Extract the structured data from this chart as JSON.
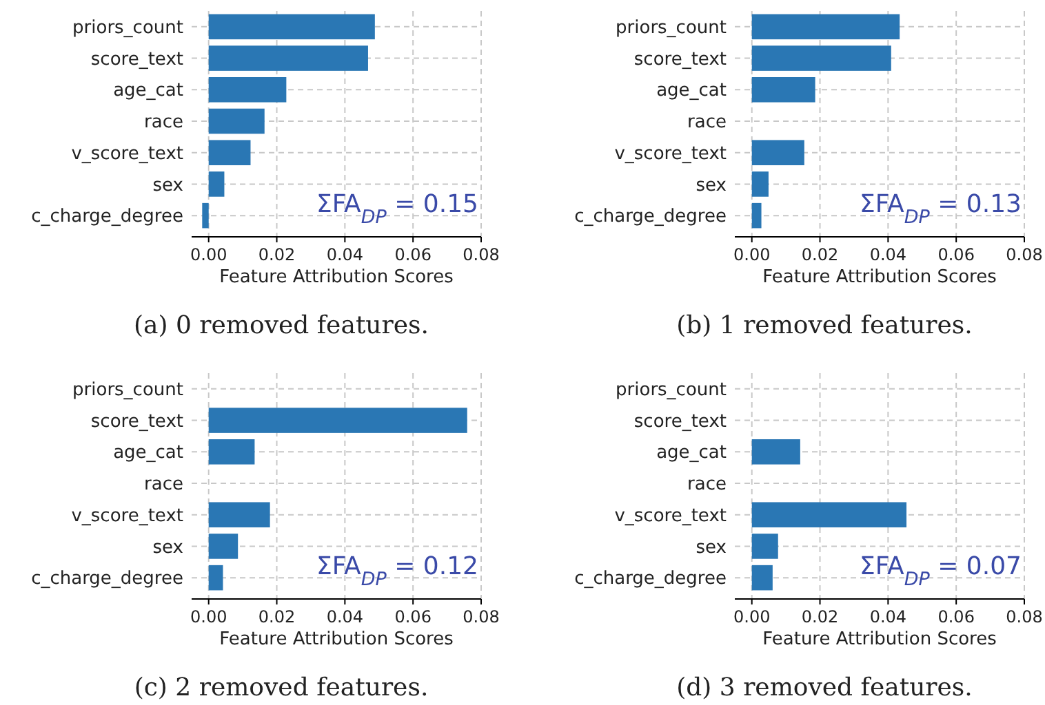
{
  "chart_data": [
    {
      "type": "bar",
      "orientation": "horizontal",
      "title": "(a) 0 removed features.",
      "xlabel": "Feature Attribution Scores",
      "categories": [
        "priors_count",
        "score_text",
        "age_cat",
        "race",
        "v_score_text",
        "sex",
        "c_charge_degree"
      ],
      "values": [
        0.0488,
        0.0468,
        0.0228,
        0.0164,
        0.0123,
        0.0046,
        -0.0019
      ],
      "color": "#2a77b4",
      "xlim": [
        -0.005,
        0.08
      ],
      "xticks": [
        {
          "value": 0,
          "label": "0.00"
        },
        {
          "value": 0.02,
          "label": "0.02"
        },
        {
          "value": 0.04,
          "label": "0.04"
        },
        {
          "value": 0.06,
          "label": "0.06"
        },
        {
          "value": 0.08,
          "label": "0.08"
        }
      ],
      "grid": true,
      "annotations": [
        "ΣFA$_{DP}$ = 0.15"
      ]
    },
    {
      "type": "bar",
      "orientation": "horizontal",
      "title": "(b) 1 removed features.",
      "xlabel": "Feature Attribution Scores",
      "categories": [
        "priors_count",
        "score_text",
        "age_cat",
        "race",
        "v_score_text",
        "sex",
        "c_charge_degree"
      ],
      "values": [
        0.0434,
        0.0409,
        0.0186,
        0,
        0.0154,
        0.0049,
        0.0028
      ],
      "color": "#2a77b4",
      "xlim": [
        -0.005,
        0.08
      ],
      "xticks": [
        {
          "value": 0,
          "label": "0.00"
        },
        {
          "value": 0.02,
          "label": "0.02"
        },
        {
          "value": 0.04,
          "label": "0.04"
        },
        {
          "value": 0.06,
          "label": "0.06"
        },
        {
          "value": 0.08,
          "label": "0.08"
        }
      ],
      "grid": true,
      "annotations": [
        "ΣFA$_{DP}$ = 0.13"
      ]
    },
    {
      "type": "bar",
      "orientation": "horizontal",
      "title": "(c) 2 removed features.",
      "xlabel": "Feature Attribution Scores",
      "categories": [
        "priors_count",
        "score_text",
        "age_cat",
        "race",
        "v_score_text",
        "sex",
        "c_charge_degree"
      ],
      "values": [
        0,
        0.0759,
        0.0135,
        0,
        0.018,
        0.0086,
        0.0042
      ],
      "color": "#2a77b4",
      "xlim": [
        -0.005,
        0.08
      ],
      "xticks": [
        {
          "value": 0,
          "label": "0.00"
        },
        {
          "value": 0.02,
          "label": "0.02"
        },
        {
          "value": 0.04,
          "label": "0.04"
        },
        {
          "value": 0.06,
          "label": "0.06"
        },
        {
          "value": 0.08,
          "label": "0.08"
        }
      ],
      "grid": true,
      "annotations": [
        "ΣFA$_{DP}$ = 0.12"
      ]
    },
    {
      "type": "bar",
      "orientation": "horizontal",
      "title": "(d) 3 removed features.",
      "xlabel": "Feature Attribution Scores",
      "categories": [
        "priors_count",
        "score_text",
        "age_cat",
        "race",
        "v_score_text",
        "sex",
        "c_charge_degree"
      ],
      "values": [
        0,
        0,
        0.0142,
        0,
        0.0454,
        0.0077,
        0.0061
      ],
      "color": "#2a77b4",
      "xlim": [
        -0.005,
        0.08
      ],
      "xticks": [
        {
          "value": 0,
          "label": "0.00"
        },
        {
          "value": 0.02,
          "label": "0.02"
        },
        {
          "value": 0.04,
          "label": "0.04"
        },
        {
          "value": 0.06,
          "label": "0.06"
        },
        {
          "value": 0.08,
          "label": "0.08"
        }
      ],
      "grid": true,
      "annotations": [
        "ΣFA$_{DP}$ = 0.07"
      ]
    }
  ]
}
